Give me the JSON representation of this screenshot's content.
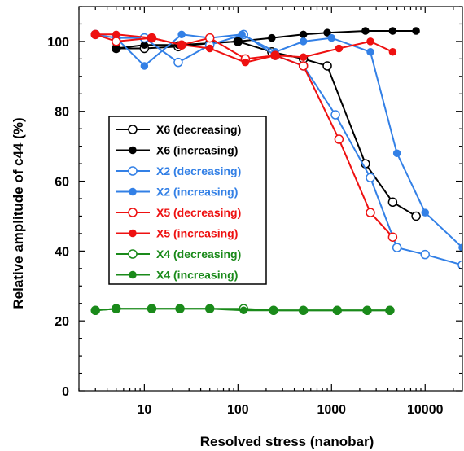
{
  "chart_data": {
    "type": "line",
    "title": "",
    "xlabel": "Resolved stress (nanobar)",
    "ylabel": "Relative amplitude of c44 (%)",
    "xscale": "log",
    "xlim": [
      2,
      25000
    ],
    "ylim": [
      0,
      110
    ],
    "xticks": [
      10,
      100,
      1000,
      10000
    ],
    "xtick_labels": [
      "10",
      "100",
      "1000",
      "10000"
    ],
    "yticks": [
      0,
      20,
      40,
      60,
      80,
      100
    ],
    "ytick_labels": [
      "0",
      "20",
      "40",
      "60",
      "80",
      "100"
    ],
    "grid": false,
    "legend_position": "center-left",
    "series": [
      {
        "name": "X6 (decreasing)",
        "color": "#000000",
        "marker": "open",
        "x": [
          5,
          10,
          23,
          50,
          100,
          230,
          500,
          900,
          2300,
          4500,
          8000
        ],
        "y": [
          98,
          98,
          98.5,
          99.5,
          100,
          97,
          95,
          93,
          65,
          54,
          50
        ]
      },
      {
        "name": "X6 (increasing)",
        "color": "#000000",
        "marker": "filled",
        "x": [
          5,
          10,
          23,
          50,
          100,
          230,
          500,
          900,
          2300,
          4500,
          8000
        ],
        "y": [
          98,
          99,
          99,
          99.5,
          100,
          101,
          102,
          102.5,
          103,
          103,
          103
        ]
      },
      {
        "name": "X2 (decreasing)",
        "color": "#3380e6",
        "marker": "open",
        "x": [
          3,
          5,
          10,
          23,
          50,
          115,
          250,
          500,
          1100,
          2600,
          5000,
          10000,
          25000
        ],
        "y": [
          102,
          101,
          101,
          94,
          99,
          102,
          96,
          93,
          79,
          61,
          41,
          39,
          36
        ]
      },
      {
        "name": "X2 (increasing)",
        "color": "#3380e6",
        "marker": "filled",
        "x": [
          5,
          10,
          25,
          50,
          110,
          250,
          500,
          1000,
          2600,
          5000,
          10000,
          25000
        ],
        "y": [
          101,
          93,
          102,
          101,
          102,
          97,
          100,
          101,
          97,
          68,
          51,
          41
        ]
      },
      {
        "name": "X5 (decreasing)",
        "color": "#ee1111",
        "marker": "open",
        "x": [
          3,
          5,
          12,
          25,
          50,
          120,
          250,
          500,
          1200,
          2600,
          4500
        ],
        "y": [
          102,
          100,
          101,
          99,
          101,
          95,
          96,
          93,
          72,
          51,
          44
        ]
      },
      {
        "name": "X5 (increasing)",
        "color": "#ee1111",
        "marker": "filled",
        "x": [
          3,
          5,
          12,
          25,
          50,
          120,
          250,
          500,
          1200,
          2600,
          4500
        ],
        "y": [
          102,
          102,
          101,
          99,
          98,
          94,
          96,
          95.5,
          98,
          100,
          97
        ]
      },
      {
        "name": "X4 (decreasing)",
        "color": "#1a8a1a",
        "marker": "open",
        "x": [
          3,
          5,
          12,
          24,
          50,
          115,
          240,
          500,
          1150,
          2400,
          4200
        ],
        "y": [
          23,
          23.5,
          23.5,
          23.5,
          23.5,
          23.5,
          23,
          23,
          23,
          23,
          23
        ]
      },
      {
        "name": "X4 (increasing)",
        "color": "#1a8a1a",
        "marker": "filled",
        "x": [
          3,
          5,
          12,
          24,
          50,
          115,
          240,
          500,
          1150,
          2400,
          4200
        ],
        "y": [
          23,
          23.5,
          23.5,
          23.5,
          23.5,
          23,
          23,
          23,
          23,
          23,
          23
        ]
      }
    ]
  }
}
